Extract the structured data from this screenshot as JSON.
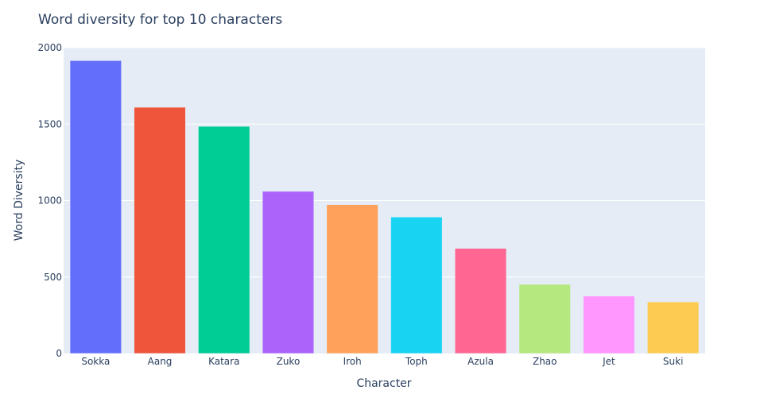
{
  "chart_data": {
    "type": "bar",
    "title": "Word diversity for top 10 characters",
    "xlabel": "Character",
    "ylabel": "Word Diversity",
    "categories": [
      "Sokka",
      "Aang",
      "Katara",
      "Zuko",
      "Iroh",
      "Toph",
      "Azula",
      "Zhao",
      "Jet",
      "Suki"
    ],
    "values": [
      1915,
      1610,
      1485,
      1060,
      973,
      892,
      687,
      452,
      375,
      337
    ],
    "colors": [
      "#636efa",
      "#EF553B",
      "#00cc96",
      "#ab63fa",
      "#FFA15A",
      "#19d3f3",
      "#FF6692",
      "#B6E880",
      "#FF97FF",
      "#FECB52"
    ],
    "ylim": [
      0,
      2000
    ],
    "yticks": [
      0,
      500,
      1000,
      1500,
      2000
    ],
    "ytick_labels": [
      "0",
      "500",
      "1000",
      "1500",
      "2000"
    ],
    "grid": true,
    "plot_background": "#e5ecf6",
    "gridline_color": "#ffffff",
    "text_color": "#2a3f5f"
  }
}
